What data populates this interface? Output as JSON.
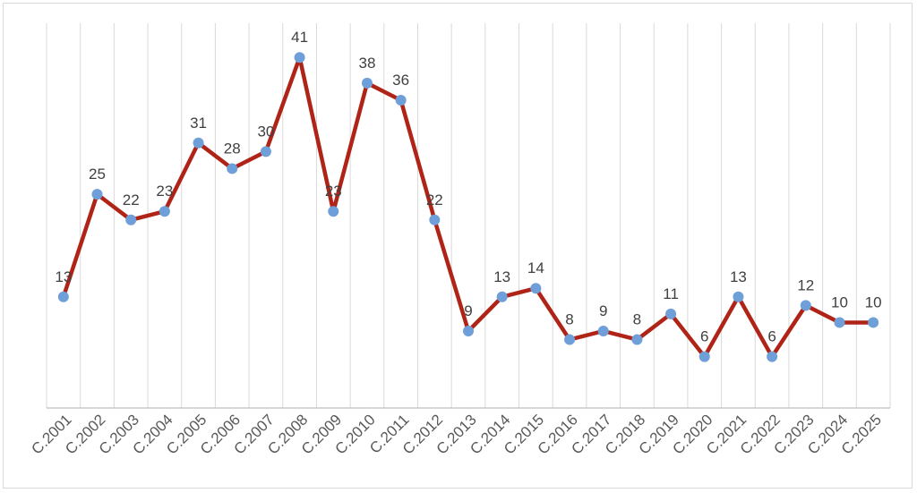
{
  "chart_data": {
    "type": "line",
    "title": "",
    "xlabel": "",
    "ylabel": "",
    "categories": [
      "C.2001",
      "C.2002",
      "C.2003",
      "C.2004",
      "C.2005",
      "C.2006",
      "C.2007",
      "C.2008",
      "C.2009",
      "C.2010",
      "C.2011",
      "C.2012",
      "C.2013",
      "C.2014",
      "C.2015",
      "C.2016",
      "C.2017",
      "C.2018",
      "C.2019",
      "C.2020",
      "C.2021",
      "C.2022",
      "C.2023",
      "C.2024",
      "C.2025"
    ],
    "series": [
      {
        "values": [
          13,
          25,
          22,
          23,
          31,
          28,
          30,
          41,
          23,
          38,
          36,
          22,
          9,
          13,
          14,
          8,
          9,
          8,
          11,
          6,
          13,
          6,
          12,
          10,
          10
        ],
        "line_color": "#b02418",
        "marker_color": "#6f9fd8",
        "data_labels": true
      }
    ],
    "ylim": [
      0,
      45
    ],
    "grid": "vertical",
    "legend": "none"
  }
}
